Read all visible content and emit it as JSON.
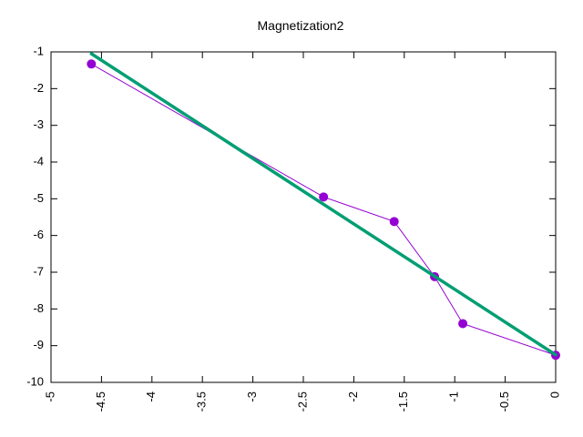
{
  "chart_data": {
    "type": "line",
    "title": "Magnetization2",
    "xlabel": "",
    "ylabel": "",
    "xlim": [
      -5,
      0
    ],
    "ylim": [
      -10,
      -1
    ],
    "grid": false,
    "legend": "none",
    "x_ticks": [
      -5,
      -4.5,
      -4,
      -3.5,
      -3,
      -2.5,
      -2,
      -1.5,
      -1,
      -0.5,
      0
    ],
    "x_tick_labels": [
      "-5",
      "-4.5",
      "-4",
      "-3.5",
      "-3",
      "-2.5",
      "-2",
      "-1.5",
      "-1",
      "-0.5",
      "0"
    ],
    "y_ticks": [
      -10,
      -9,
      -8,
      -7,
      -6,
      -5,
      -4,
      -3,
      -2,
      -1
    ],
    "y_tick_labels": [
      "-10",
      "-9",
      "-8",
      "-7",
      "-6",
      "-5",
      "-4",
      "-3",
      "-2",
      "-1"
    ],
    "series": [
      {
        "kind": "points-line",
        "color": "#9400D3",
        "x": [
          -4.6,
          -2.3,
          -1.6,
          -1.2,
          -0.92,
          0
        ],
        "y": [
          -1.33,
          -4.95,
          -5.62,
          -7.12,
          -8.4,
          -9.26
        ]
      },
      {
        "kind": "fit-line",
        "color": "#009E73",
        "x": [
          -4.6,
          0
        ],
        "y": [
          -1.05,
          -9.25
        ]
      }
    ]
  }
}
